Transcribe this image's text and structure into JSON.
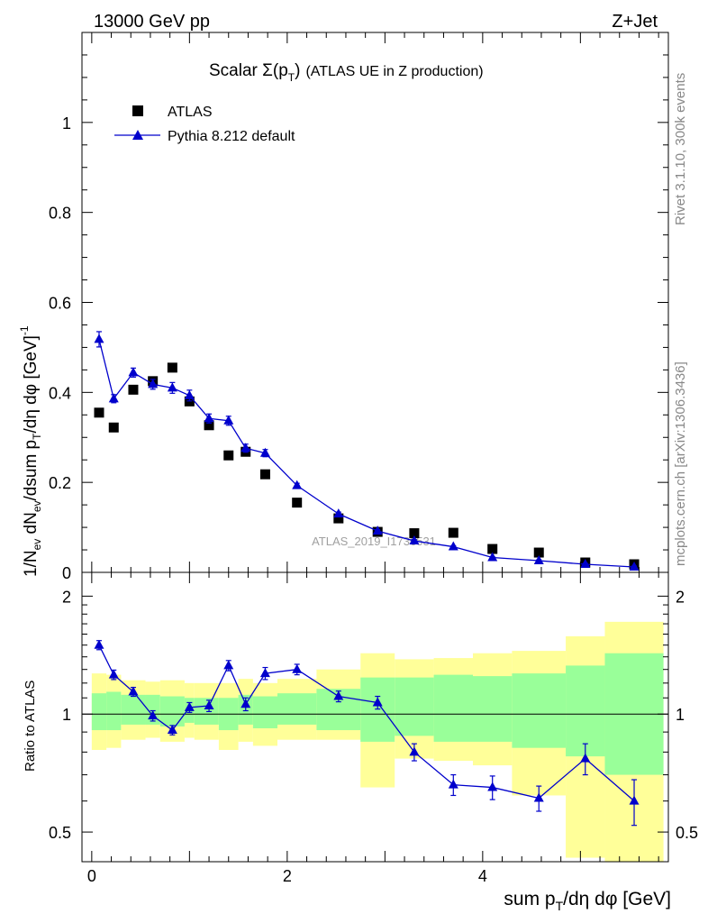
{
  "header": {
    "left": "13000 GeV pp",
    "right": "Z+Jet"
  },
  "side_texts": {
    "rivet": "Rivet 3.1.10,  300k events",
    "mcplots": "mcplots.cern.ch [arXiv:1306.3436]"
  },
  "colors": {
    "mc": "#0000cc",
    "data": "#000000",
    "band_outer": "#ffff99",
    "band_inner": "#99ff99"
  },
  "chart_data": [
    {
      "type": "scatter",
      "panel": "main",
      "title_prefix": "Scalar ",
      "title_sigma": "Σ(p",
      "title_sub": "T",
      "title_close": ")",
      "title_suffix": "(ATLAS UE in Z production)",
      "ylabel": "1/N_ev dN_ev/dsum p_T/dη dφ [GeV]^-1",
      "ylim": [
        0,
        1.2
      ],
      "xlim": [
        -0.1,
        5.9
      ],
      "yticks": [
        0,
        0.2,
        0.4,
        0.6,
        0.8,
        1
      ],
      "ytick_labels": [
        "0",
        "0.2",
        "0.4",
        "0.6",
        "0.8",
        "1"
      ],
      "legend": {
        "data": "ATLAS",
        "mc": "Pythia 8.212 default",
        "position": "top-left"
      },
      "watermark": "ATLAS_2019_I1736531",
      "x": [
        0.075,
        0.225,
        0.425,
        0.625,
        0.825,
        1.0,
        1.2,
        1.4,
        1.575,
        1.775,
        2.1,
        2.525,
        2.925,
        3.3,
        3.7,
        4.1,
        4.575,
        5.05,
        5.55
      ],
      "series": [
        {
          "name": "ATLAS",
          "values": [
            0.355,
            0.322,
            0.406,
            0.425,
            0.455,
            0.38,
            0.327,
            0.26,
            0.268,
            0.218,
            0.155,
            0.12,
            0.09,
            0.087,
            0.088,
            0.052,
            0.044,
            0.022,
            0.018
          ]
        },
        {
          "name": "Pythia 8.212 default",
          "values": [
            0.518,
            0.386,
            0.444,
            0.418,
            0.41,
            0.393,
            0.342,
            0.337,
            0.276,
            0.265,
            0.193,
            0.13,
            0.092,
            0.07,
            0.057,
            0.033,
            0.026,
            0.018,
            0.012
          ],
          "errors": [
            0.017,
            0.009,
            0.01,
            0.011,
            0.012,
            0.012,
            0.01,
            0.01,
            0.009,
            0.008,
            0.005,
            0.004,
            0.003,
            0.003,
            0.002,
            0.002,
            0.002,
            0.002,
            0.002
          ]
        }
      ]
    },
    {
      "type": "line",
      "panel": "ratio",
      "ylabel": "Ratio to ATLAS",
      "ylim": [
        0.42,
        2.3
      ],
      "xlim": [
        -0.1,
        5.9
      ],
      "yticks": [
        0.5,
        1,
        2
      ],
      "ytick_labels": [
        "0.5",
        "1",
        "2"
      ],
      "xticks": [
        0,
        2,
        4
      ],
      "xtick_labels": [
        "0",
        "2",
        "4"
      ],
      "xlabel": "sum p_T/dη dφ [GeV]",
      "bin_edges": [
        0,
        0.15,
        0.3,
        0.55,
        0.7,
        0.95,
        1.05,
        1.3,
        1.5,
        1.65,
        1.9,
        2.3,
        2.75,
        3.1,
        3.5,
        3.9,
        4.3,
        4.85,
        5.25,
        5.85
      ],
      "band_outer": {
        "low": [
          0.81,
          0.82,
          0.86,
          0.87,
          0.85,
          0.87,
          0.86,
          0.81,
          0.85,
          0.83,
          0.86,
          0.86,
          0.65,
          0.77,
          0.76,
          0.74,
          0.62,
          0.43,
          0.35
        ],
        "high": [
          1.27,
          1.26,
          1.22,
          1.21,
          1.22,
          1.2,
          1.2,
          1.2,
          1.23,
          1.2,
          1.23,
          1.3,
          1.43,
          1.38,
          1.39,
          1.43,
          1.45,
          1.58,
          1.72
        ]
      },
      "band_inner": {
        "low": [
          0.91,
          0.91,
          0.94,
          0.94,
          0.93,
          0.95,
          0.94,
          0.91,
          0.94,
          0.92,
          0.94,
          0.91,
          0.85,
          0.88,
          0.85,
          0.85,
          0.82,
          0.78,
          0.7
        ],
        "high": [
          1.13,
          1.14,
          1.12,
          1.12,
          1.11,
          1.1,
          1.1,
          1.1,
          1.12,
          1.11,
          1.13,
          1.16,
          1.24,
          1.24,
          1.26,
          1.25,
          1.27,
          1.33,
          1.43
        ]
      },
      "x": [
        0.075,
        0.225,
        0.425,
        0.625,
        0.825,
        1.0,
        1.2,
        1.4,
        1.575,
        1.775,
        2.1,
        2.525,
        2.925,
        3.3,
        3.7,
        4.1,
        4.575,
        5.05,
        5.55
      ],
      "series": [
        {
          "name": "Pythia 8.212 default",
          "values": [
            1.5,
            1.26,
            1.14,
            0.99,
            0.91,
            1.04,
            1.05,
            1.33,
            1.06,
            1.27,
            1.3,
            1.11,
            1.07,
            0.8,
            0.66,
            0.65,
            0.61,
            0.77,
            0.6
          ],
          "errors": [
            0.04,
            0.035,
            0.03,
            0.03,
            0.025,
            0.03,
            0.035,
            0.04,
            0.04,
            0.045,
            0.04,
            0.035,
            0.04,
            0.04,
            0.04,
            0.045,
            0.045,
            0.07,
            0.08
          ]
        }
      ]
    }
  ]
}
